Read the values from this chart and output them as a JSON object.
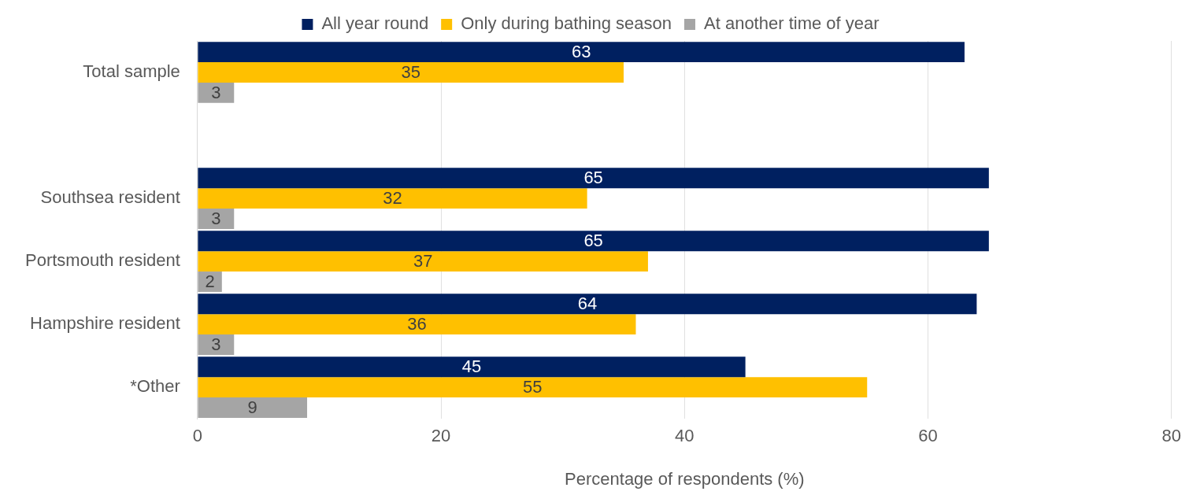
{
  "chart_data": {
    "type": "bar",
    "orientation": "horizontal",
    "xlabel": "Percentage of respondents (%)",
    "categories": [
      "Total sample",
      null,
      "Southsea resident",
      "Portsmouth resident",
      "Hampshire resident",
      "*Other"
    ],
    "series": [
      {
        "name": "All year round",
        "color": "#002060",
        "values": [
          63,
          null,
          65,
          65,
          64,
          45
        ]
      },
      {
        "name": "Only during bathing season",
        "color": "#ffc000",
        "values": [
          35,
          null,
          32,
          37,
          36,
          55
        ]
      },
      {
        "name": "At another time of year",
        "color": "#a5a5a5",
        "values": [
          3,
          null,
          3,
          2,
          3,
          9
        ]
      }
    ],
    "xlim": [
      0,
      80
    ],
    "xticks": [
      0,
      20,
      40,
      60,
      80
    ],
    "grid": "x",
    "legend": "top",
    "data_labels": true
  }
}
